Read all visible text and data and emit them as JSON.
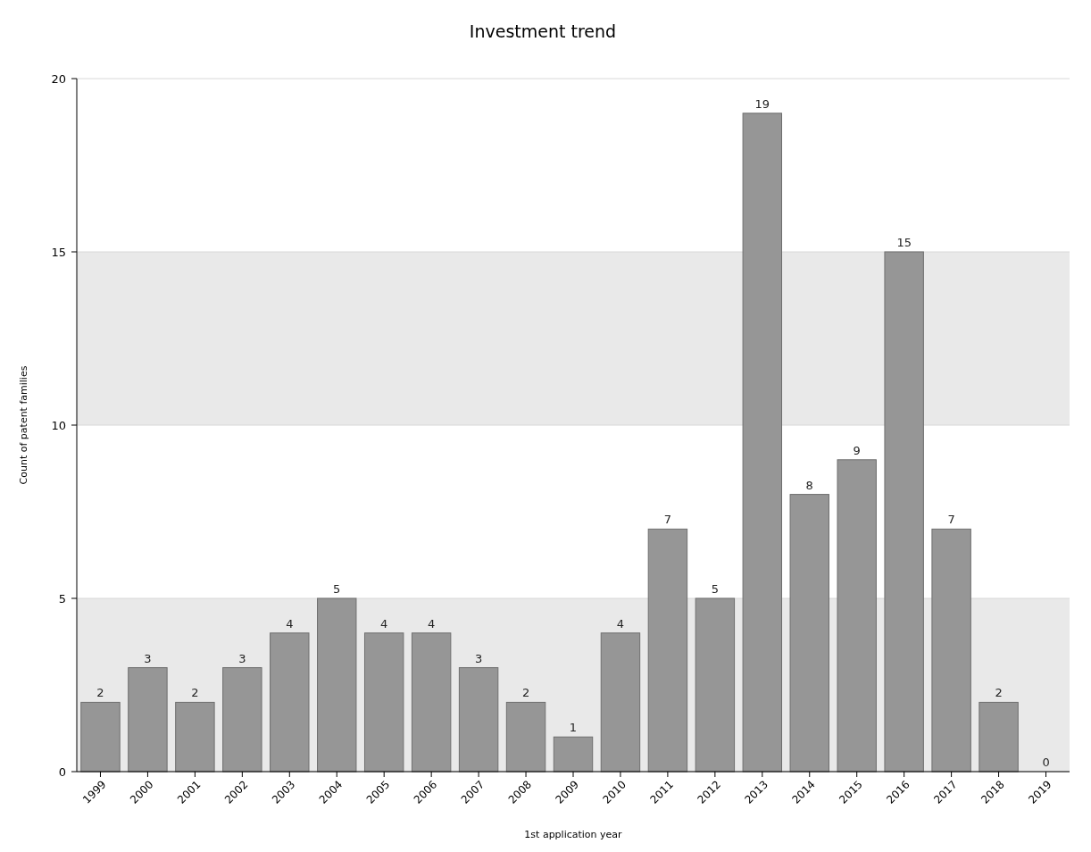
{
  "chart_data": {
    "type": "bar",
    "title": "Investment trend",
    "xlabel": "1st application year",
    "ylabel": "Count of patent families",
    "categories": [
      "1999",
      "2000",
      "2001",
      "2002",
      "2003",
      "2004",
      "2005",
      "2006",
      "2007",
      "2008",
      "2009",
      "2010",
      "2011",
      "2012",
      "2013",
      "2014",
      "2015",
      "2016",
      "2017",
      "2018",
      "2019"
    ],
    "values": [
      2,
      3,
      2,
      3,
      4,
      5,
      4,
      4,
      3,
      2,
      1,
      4,
      7,
      5,
      19,
      8,
      9,
      15,
      7,
      2,
      0
    ],
    "color": "#969696",
    "ylim": [
      0,
      20
    ],
    "yticks": [
      0,
      5,
      10,
      15,
      20
    ],
    "grid": "y",
    "data_labels": true,
    "bands": [
      {
        "axis": "y",
        "from": 0,
        "to": 5,
        "color": "#e9e9e9"
      },
      {
        "axis": "y",
        "from": 10,
        "to": 15,
        "color": "#e9e9e9"
      }
    ]
  }
}
